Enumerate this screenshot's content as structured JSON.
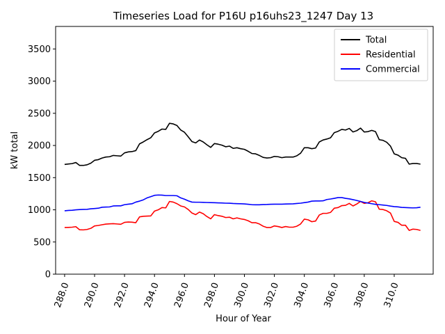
{
  "chart_data": {
    "type": "line",
    "title": "Timeseries Load for P16U p16uhs23_1247  Day 13",
    "xlabel": "Hour of Year",
    "ylabel": "kW total",
    "xlim": [
      287.4,
      312.6
    ],
    "ylim": [
      0,
      3850
    ],
    "xticks": [
      288,
      290,
      292,
      294,
      296,
      298,
      300,
      302,
      304,
      306,
      308,
      310
    ],
    "xtick_labels": [
      "288.0",
      "290.0",
      "292.0",
      "294.0",
      "296.0",
      "298.0",
      "300.0",
      "302.0",
      "304.0",
      "306.0",
      "308.0",
      "310.0"
    ],
    "yticks": [
      0,
      500,
      1000,
      1500,
      2000,
      2500,
      3000,
      3500
    ],
    "ytick_labels": [
      "0",
      "500",
      "1000",
      "1500",
      "2000",
      "2500",
      "3000",
      "3500"
    ],
    "legend_position": "top-right",
    "x": [
      288.0,
      288.25,
      288.5,
      288.75,
      289.0,
      289.25,
      289.5,
      289.75,
      290.0,
      290.25,
      290.5,
      290.75,
      291.0,
      291.25,
      291.5,
      291.75,
      292.0,
      292.25,
      292.5,
      292.75,
      293.0,
      293.25,
      293.5,
      293.75,
      294.0,
      294.25,
      294.5,
      294.75,
      295.0,
      295.25,
      295.5,
      295.75,
      296.0,
      296.25,
      296.5,
      296.75,
      297.0,
      297.25,
      297.5,
      297.75,
      298.0,
      298.25,
      298.5,
      298.75,
      299.0,
      299.25,
      299.5,
      299.75,
      300.0,
      300.25,
      300.5,
      300.75,
      301.0,
      301.25,
      301.5,
      301.75,
      302.0,
      302.25,
      302.5,
      302.75,
      303.0,
      303.25,
      303.5,
      303.75,
      304.0,
      304.25,
      304.5,
      304.75,
      305.0,
      305.25,
      305.5,
      305.75,
      306.0,
      306.25,
      306.5,
      306.75,
      307.0,
      307.25,
      307.5,
      307.75,
      308.0,
      308.25,
      308.5,
      308.75,
      309.0,
      309.25,
      309.5,
      309.75,
      310.0,
      310.25,
      310.5,
      310.75,
      311.0,
      311.25,
      311.5,
      311.75
    ],
    "series": [
      {
        "name": "Total",
        "color": "#000000",
        "values": [
          1705,
          1712,
          1718,
          1735,
          1690,
          1690,
          1700,
          1725,
          1770,
          1780,
          1805,
          1820,
          1825,
          1845,
          1840,
          1835,
          1885,
          1900,
          1905,
          1920,
          2025,
          2055,
          2090,
          2120,
          2195,
          2220,
          2255,
          2250,
          2345,
          2335,
          2310,
          2240,
          2205,
          2135,
          2060,
          2040,
          2085,
          2055,
          2010,
          1970,
          2030,
          2020,
          2005,
          1980,
          1990,
          1955,
          1965,
          1950,
          1940,
          1910,
          1875,
          1870,
          1845,
          1815,
          1805,
          1810,
          1830,
          1825,
          1810,
          1820,
          1820,
          1820,
          1840,
          1880,
          1965,
          1965,
          1950,
          1960,
          2055,
          2085,
          2100,
          2120,
          2200,
          2220,
          2250,
          2240,
          2265,
          2210,
          2230,
          2270,
          2210,
          2215,
          2235,
          2215,
          2090,
          2080,
          2050,
          1990,
          1870,
          1850,
          1810,
          1800,
          1710,
          1720,
          1720,
          1710
        ]
      },
      {
        "name": "Residential",
        "color": "#ff0000",
        "values": [
          725,
          727,
          730,
          738,
          690,
          688,
          695,
          712,
          750,
          757,
          768,
          778,
          782,
          785,
          780,
          775,
          805,
          810,
          808,
          800,
          890,
          900,
          902,
          905,
          980,
          1000,
          1035,
          1030,
          1130,
          1120,
          1095,
          1060,
          1045,
          1005,
          950,
          925,
          965,
          940,
          895,
          860,
          925,
          910,
          900,
          880,
          885,
          860,
          875,
          860,
          850,
          830,
          800,
          800,
          780,
          745,
          725,
          725,
          750,
          740,
          725,
          740,
          730,
          730,
          745,
          780,
          855,
          845,
          815,
          825,
          920,
          945,
          945,
          960,
          1025,
          1035,
          1065,
          1070,
          1100,
          1060,
          1090,
          1130,
          1100,
          1110,
          1140,
          1125,
          1010,
          1005,
          985,
          950,
          820,
          805,
          760,
          760,
          680,
          700,
          695,
          680
        ]
      },
      {
        "name": "Commercial",
        "color": "#0000ff",
        "values": [
          985,
          990,
          993,
          1000,
          1004,
          1006,
          1008,
          1016,
          1020,
          1025,
          1040,
          1043,
          1045,
          1060,
          1062,
          1062,
          1080,
          1088,
          1094,
          1120,
          1135,
          1155,
          1185,
          1205,
          1225,
          1230,
          1228,
          1222,
          1222,
          1222,
          1218,
          1185,
          1165,
          1140,
          1120,
          1118,
          1118,
          1116,
          1114,
          1112,
          1110,
          1108,
          1106,
          1103,
          1102,
          1098,
          1096,
          1094,
          1092,
          1086,
          1080,
          1078,
          1078,
          1082,
          1083,
          1086,
          1088,
          1088,
          1088,
          1090,
          1092,
          1093,
          1098,
          1103,
          1112,
          1120,
          1135,
          1138,
          1138,
          1140,
          1160,
          1168,
          1178,
          1190,
          1190,
          1178,
          1170,
          1158,
          1145,
          1130,
          1115,
          1105,
          1095,
          1085,
          1080,
          1074,
          1068,
          1058,
          1050,
          1046,
          1038,
          1035,
          1032,
          1030,
          1032,
          1040
        ]
      }
    ]
  }
}
